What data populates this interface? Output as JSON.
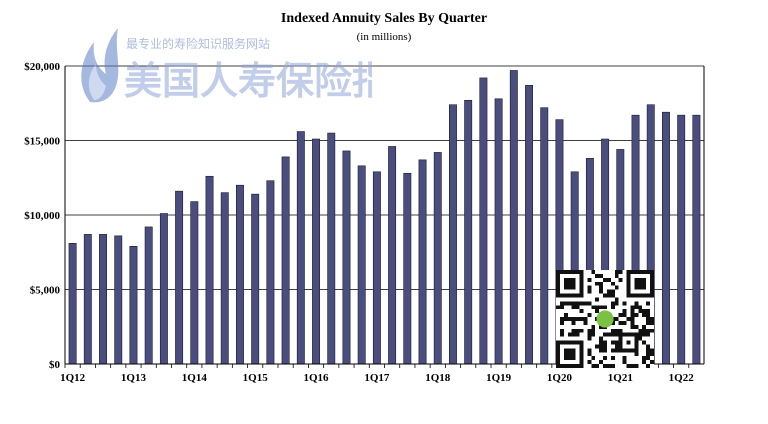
{
  "chart_data": {
    "type": "bar",
    "title": "Indexed Annuity Sales By Quarter",
    "subtitle": "(in millions)",
    "xlabel": "",
    "ylabel": "",
    "ylim": [
      0,
      20000
    ],
    "yticks": [
      "$0",
      "$5,000",
      "$10,000",
      "$15,000",
      "$20,000"
    ],
    "ytick_values": [
      0,
      5000,
      10000,
      15000,
      20000
    ],
    "grid": true,
    "legend": "none",
    "bar_color": "#4a4e7e",
    "categories": [
      "1Q12",
      "2Q12",
      "3Q12",
      "4Q12",
      "1Q13",
      "2Q13",
      "3Q13",
      "4Q13",
      "1Q14",
      "2Q14",
      "3Q14",
      "4Q14",
      "1Q15",
      "2Q15",
      "3Q15",
      "4Q15",
      "1Q16",
      "2Q16",
      "3Q16",
      "4Q16",
      "1Q17",
      "2Q17",
      "3Q17",
      "4Q17",
      "1Q18",
      "2Q18",
      "3Q18",
      "4Q18",
      "1Q19",
      "2Q19",
      "3Q19",
      "4Q19",
      "1Q20",
      "2Q20",
      "3Q20",
      "4Q20",
      "1Q21",
      "2Q21",
      "3Q21",
      "4Q21",
      "1Q22",
      "2Q22"
    ],
    "xtick_labels": [
      "1Q12",
      "1Q13",
      "1Q14",
      "1Q15",
      "1Q16",
      "1Q17",
      "1Q18",
      "1Q19",
      "1Q20",
      "1Q21",
      "1Q22"
    ],
    "values": [
      8100,
      8700,
      8700,
      8600,
      7900,
      9200,
      10100,
      11600,
      10900,
      12600,
      11500,
      12000,
      11400,
      12300,
      13900,
      15600,
      15100,
      15500,
      14300,
      13300,
      12900,
      14600,
      12800,
      13700,
      14200,
      17400,
      17700,
      19200,
      17800,
      19700,
      18700,
      17200,
      16400,
      12900,
      13800,
      15100,
      14400,
      16700,
      17400,
      16900,
      16700,
      16700
    ]
  },
  "watermark": {
    "slogan": "最专业的寿险知识服务网站",
    "brand": "美国人寿保险指南"
  },
  "qr_code": {
    "icon": "qr-code-icon"
  }
}
